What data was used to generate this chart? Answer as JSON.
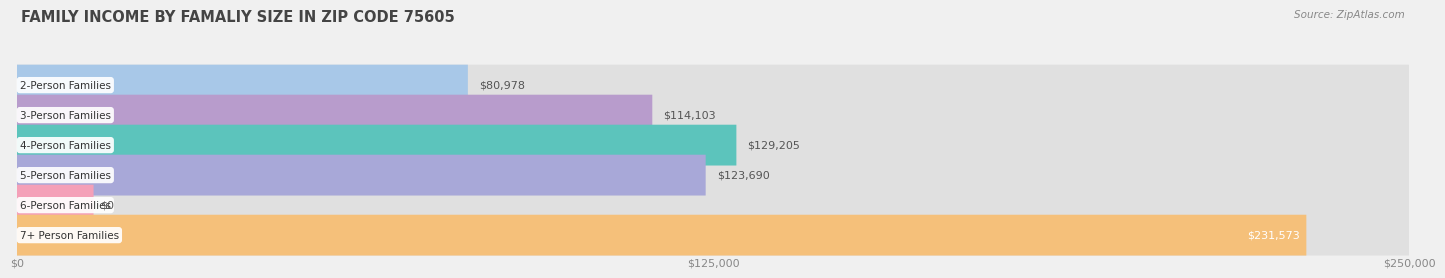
{
  "title": "FAMILY INCOME BY FAMALIY SIZE IN ZIP CODE 75605",
  "source": "Source: ZipAtlas.com",
  "categories": [
    "2-Person Families",
    "3-Person Families",
    "4-Person Families",
    "5-Person Families",
    "6-Person Families",
    "7+ Person Families"
  ],
  "values": [
    80978,
    114103,
    129205,
    123690,
    0,
    231573
  ],
  "labels": [
    "$80,978",
    "$114,103",
    "$129,205",
    "$123,690",
    "$0",
    "$231,573"
  ],
  "bar_colors": [
    "#a8c8e8",
    "#b89ccc",
    "#5cc4bc",
    "#a8a8d8",
    "#f4a0b8",
    "#f5c07a"
  ],
  "bar_bg_color": "#e0e0e0",
  "xmax": 250000,
  "xticks": [
    0,
    125000,
    250000
  ],
  "xticklabels": [
    "$0",
    "$125,000",
    "$250,000"
  ],
  "fig_bg_color": "#f0f0f0",
  "bar_height": 0.68,
  "title_fontsize": 10.5,
  "label_fontsize": 8,
  "source_fontsize": 7.5,
  "category_fontsize": 7.5,
  "tick_fontsize": 8
}
